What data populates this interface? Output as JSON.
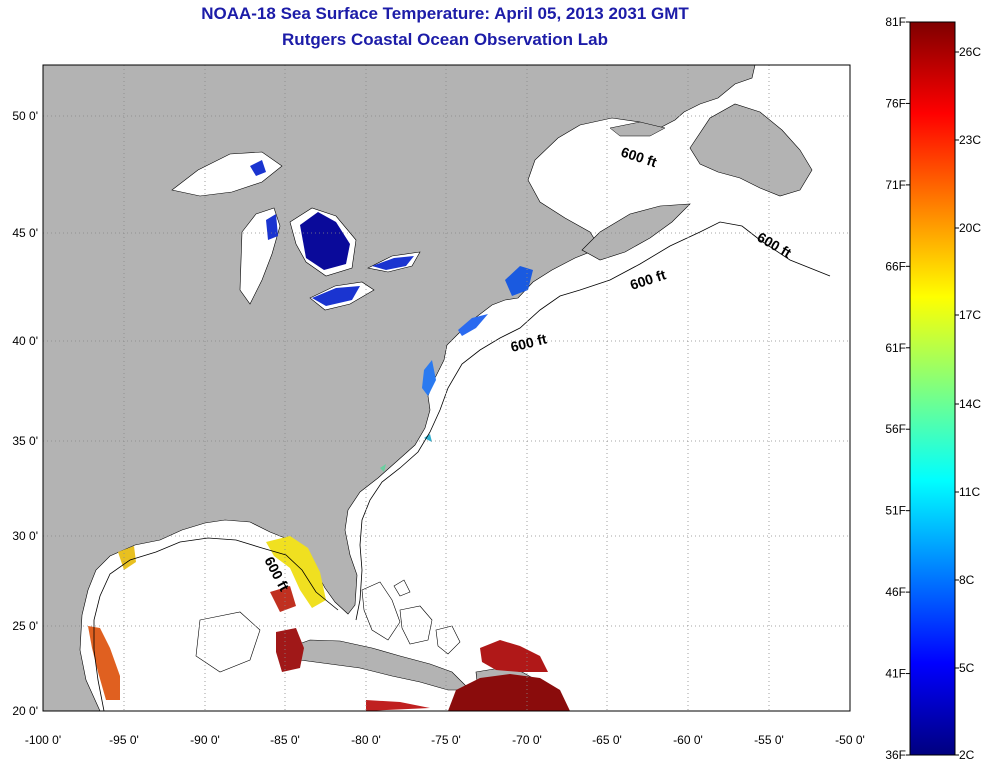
{
  "title": "NOAA-18 Sea Surface Temperature:  April 05, 2013 2031 GMT",
  "subtitle": "Rutgers Coastal Ocean Observation Lab",
  "axes": {
    "lon_labels": [
      "-100 0'",
      "-95 0'",
      "-90 0'",
      "-85 0'",
      "-80 0'",
      "-75 0'",
      "-70 0'",
      "-65 0'",
      "-60 0'",
      "-55 0'",
      "-50 0'"
    ],
    "lat_labels": [
      "50 0'",
      "45 0'",
      "40 0'",
      "35 0'",
      "30 0'",
      "25 0'",
      "20 0'"
    ]
  },
  "contour_labels": [
    "600 ft",
    "600 ft",
    "600 ft",
    "600 ft",
    "600 ft"
  ],
  "colorbar": {
    "f_labels": [
      "81F",
      "76F",
      "71F",
      "66F",
      "61F",
      "56F",
      "51F",
      "46F",
      "41F",
      "36F"
    ],
    "c_labels": [
      "26C",
      "23C",
      "20C",
      "17C",
      "14C",
      "11C",
      "8C",
      "5C",
      "2C"
    ]
  },
  "colors": {
    "land": "#b3b3b3",
    "ocean": "#ffffff",
    "title": "#1c1ca8"
  }
}
